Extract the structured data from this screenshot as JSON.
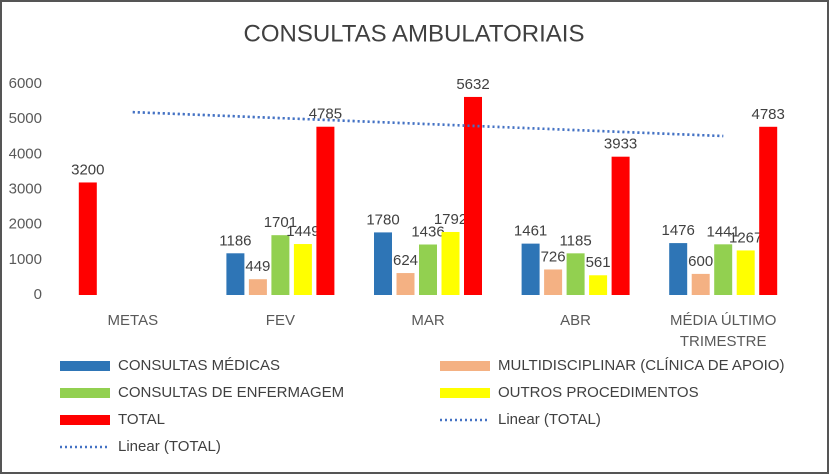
{
  "chart_data": {
    "type": "bar",
    "title": "CONSULTAS  AMBULATORIAIS",
    "categories": [
      "METAS",
      "FEV",
      "MAR",
      "ABR",
      "MÉDIA ÚLTIMO TRIMESTRE"
    ],
    "series": [
      {
        "name": "CONSULTAS MÉDICAS",
        "color": "#2e75b6",
        "point_colors": [
          "#ff0000",
          null,
          null,
          null,
          null
        ],
        "values": [
          3200,
          1186,
          1780,
          1461,
          1476
        ]
      },
      {
        "name": "MULTIDISCIPLINAR (CLÍNICA DE APOIO)",
        "color": "#f4b183",
        "values": [
          null,
          449,
          624,
          726,
          600
        ]
      },
      {
        "name": "CONSULTAS DE ENFERMAGEM",
        "color": "#92d050",
        "values": [
          null,
          1701,
          1436,
          1185,
          1441
        ]
      },
      {
        "name": "OUTROS PROCEDIMENTOS",
        "color": "#ffff00",
        "values": [
          null,
          1449,
          1792,
          561,
          1267
        ]
      },
      {
        "name": "TOTAL",
        "color": "#ff0000",
        "values": [
          null,
          4785,
          5632,
          3933,
          4783
        ]
      }
    ],
    "trendlines": [
      {
        "name": "Linear (TOTAL)",
        "color": "#4472c4",
        "values": [
          5200,
          4520
        ]
      },
      {
        "name": "Linear (TOTAL)",
        "color": "#4472c4",
        "values": [
          5200,
          4520
        ]
      }
    ],
    "ylim": [
      0,
      6000
    ],
    "yticks": [
      0,
      1000,
      2000,
      3000,
      4000,
      5000,
      6000
    ],
    "grid": false
  }
}
